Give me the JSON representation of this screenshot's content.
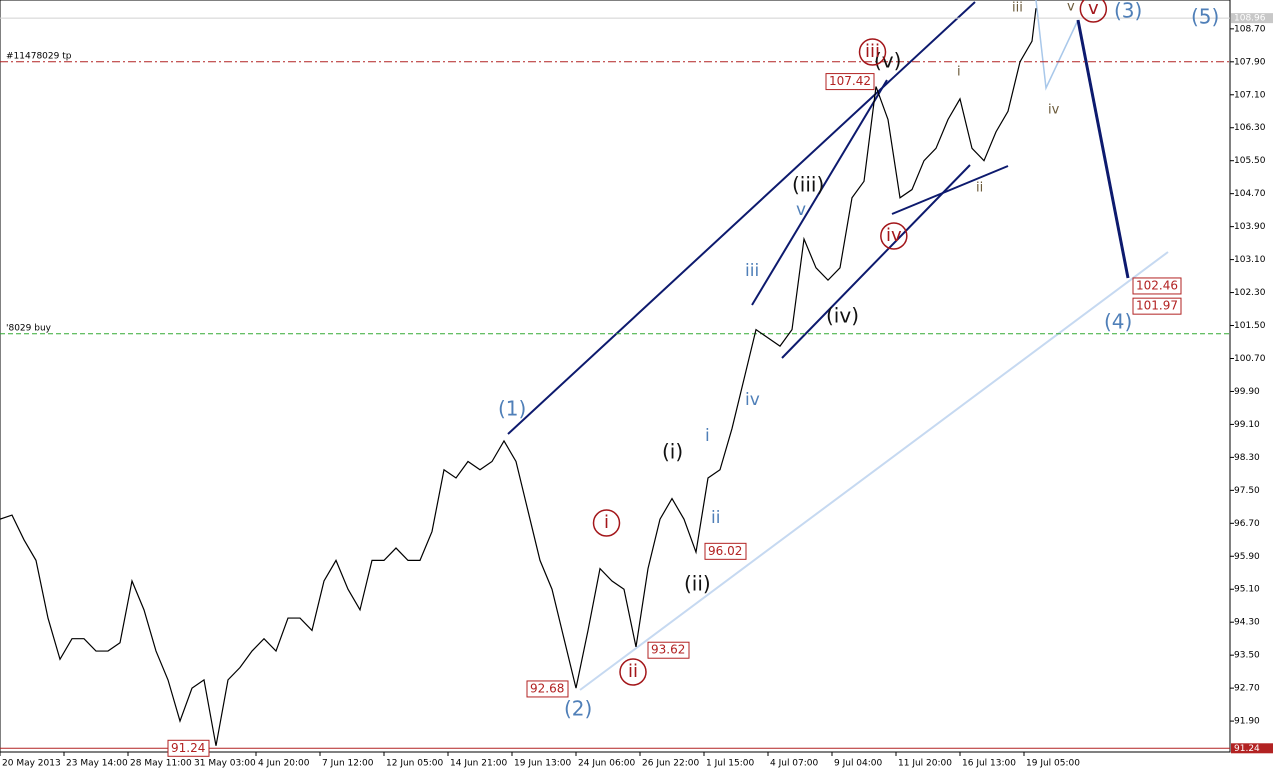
{
  "chart_data": {
    "type": "line",
    "x": [
      0,
      3,
      6,
      9,
      12,
      15,
      18,
      21,
      24,
      27,
      30,
      33,
      36,
      39,
      42,
      45,
      48,
      51,
      54,
      57,
      60,
      63,
      66,
      69,
      72,
      75,
      78,
      81,
      84,
      87,
      90,
      93,
      96,
      99,
      102,
      105,
      108,
      111,
      114,
      117,
      120,
      123,
      126,
      129,
      132,
      135,
      138,
      141,
      144,
      147,
      150,
      153,
      156,
      159,
      162,
      165,
      168,
      171,
      174,
      177,
      180,
      183,
      186,
      189,
      192,
      195,
      198,
      201,
      204,
      207,
      210,
      213,
      216,
      219,
      222,
      225,
      228,
      231,
      234,
      237,
      240,
      243,
      246,
      249,
      252,
      255,
      258,
      259
    ],
    "series": [
      {
        "color": "#000000",
        "values": [
          96.8,
          96.9,
          96.3,
          95.8,
          94.4,
          93.4,
          93.9,
          93.9,
          93.6,
          93.6,
          93.8,
          95.3,
          94.6,
          93.6,
          92.9,
          91.9,
          92.7,
          92.9,
          91.3,
          92.9,
          93.2,
          93.6,
          93.9,
          93.6,
          94.4,
          94.4,
          94.1,
          95.3,
          95.8,
          95.1,
          94.6,
          95.8,
          95.8,
          96.1,
          95.8,
          95.8,
          96.5,
          98.0,
          97.8,
          98.2,
          98.0,
          98.2,
          98.7,
          98.2,
          97.0,
          95.8,
          95.1,
          93.9,
          92.7,
          94.1,
          95.6,
          95.3,
          95.1,
          93.7,
          95.6,
          96.8,
          97.3,
          96.8,
          96.0,
          97.8,
          98.0,
          99.0,
          100.2,
          101.4,
          101.2,
          101.0,
          101.4,
          103.6,
          102.9,
          102.6,
          102.9,
          104.6,
          105.0,
          107.3,
          106.5,
          104.6,
          104.8,
          105.5,
          105.8,
          106.5,
          107.0,
          105.8,
          105.5,
          106.2,
          106.7,
          107.9,
          108.4,
          109.2
        ]
      }
    ],
    "xlim": [
      0,
      307.5
    ],
    "xticks": [
      {
        "value": 0,
        "label": "20 May 2013"
      },
      {
        "value": 16,
        "label": "23 May 14:00"
      },
      {
        "value": 32,
        "label": "28 May 11:00"
      },
      {
        "value": 48,
        "label": "31 May 03:00"
      },
      {
        "value": 64,
        "label": "4 Jun 20:00"
      },
      {
        "value": 80,
        "label": "7 Jun 12:00"
      },
      {
        "value": 96,
        "label": "12 Jun 05:00"
      },
      {
        "value": 112,
        "label": "14 Jun 21:00"
      },
      {
        "value": 128,
        "label": "19 Jun 13:00"
      },
      {
        "value": 144,
        "label": "24 Jun 06:00"
      },
      {
        "value": 160,
        "label": "26 Jun 22:00"
      },
      {
        "value": 176,
        "label": "1 Jul 15:00"
      },
      {
        "value": 192,
        "label": "4 Jul 07:00"
      },
      {
        "value": 208,
        "label": "9 Jul 04:00"
      },
      {
        "value": 224,
        "label": "11 Jul 20:00"
      },
      {
        "value": 240,
        "label": "16 Jul 13:00"
      },
      {
        "value": 256,
        "label": "19 Jul 05:00"
      }
    ],
    "ylim": [
      91.15,
      109.4
    ],
    "yticks": [
      {
        "value": 108.7,
        "label": "108.70"
      },
      {
        "value": 107.9,
        "label": "107.90"
      },
      {
        "value": 107.1,
        "label": "107.10"
      },
      {
        "value": 106.3,
        "label": "106.30"
      },
      {
        "value": 105.5,
        "label": "105.50"
      },
      {
        "value": 104.7,
        "label": "104.70"
      },
      {
        "value": 103.9,
        "label": "103.90"
      },
      {
        "value": 103.1,
        "label": "103.10"
      },
      {
        "value": 102.3,
        "label": "102.30"
      },
      {
        "value": 101.5,
        "label": "101.50"
      },
      {
        "value": 100.7,
        "label": "100.70"
      },
      {
        "value": 99.9,
        "label": "99.90"
      },
      {
        "value": 99.1,
        "label": "99.10"
      },
      {
        "value": 98.3,
        "label": "98.30"
      },
      {
        "value": 97.5,
        "label": "97.50"
      },
      {
        "value": 96.7,
        "label": "96.70"
      },
      {
        "value": 95.9,
        "label": "95.90"
      },
      {
        "value": 95.1,
        "label": "95.10"
      },
      {
        "value": 94.3,
        "label": "94.30"
      },
      {
        "value": 93.5,
        "label": "93.50"
      },
      {
        "value": 92.7,
        "label": "92.70"
      },
      {
        "value": 91.9,
        "label": "91.90"
      }
    ],
    "current_price": 108.96,
    "hlines": [
      {
        "label": "#11478029 tp",
        "value": 107.9,
        "color": "#b22222",
        "style": "dash-dot"
      },
      {
        "label": "'8029 buy",
        "value": 101.3,
        "color": "#33aa33",
        "style": "dashed"
      },
      {
        "value": 91.24,
        "color": "#b22222",
        "style": "solid"
      }
    ],
    "price_labels": [
      107.42,
      96.02,
      93.62,
      92.68,
      91.24,
      102.46,
      101.97
    ],
    "annotations": [
      "(1)",
      "(2)",
      "(3)",
      "(4)",
      "(5)",
      "(i)",
      "(ii)",
      "(iii)",
      "(iv)",
      "(v)",
      "i",
      "ii",
      "iii",
      "iv",
      "v",
      "i",
      "ii",
      "iii",
      "iv",
      "v",
      "i",
      "ii",
      "iii",
      "iv",
      "v"
    ]
  }
}
